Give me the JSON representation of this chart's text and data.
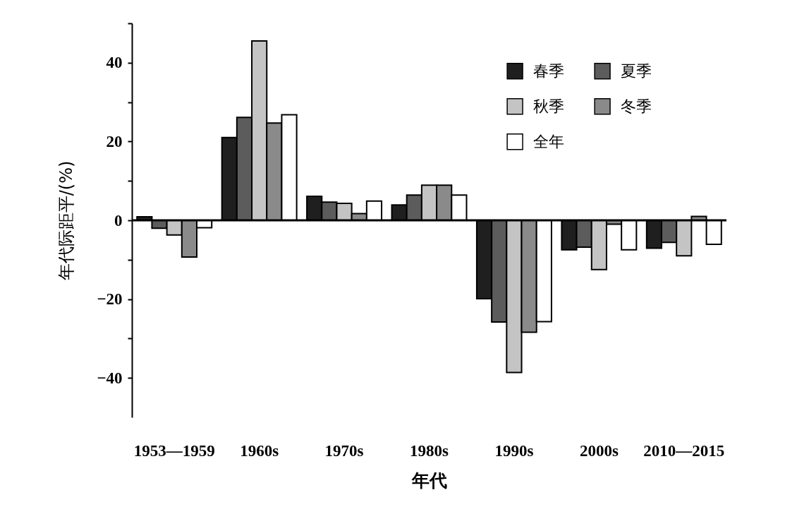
{
  "chart_data": {
    "type": "bar",
    "xlabel": "年代",
    "ylabel": "年代际距平/(%)",
    "categories": [
      "1953—1959",
      "1960s",
      "1970s",
      "1980s",
      "1990s",
      "2000s",
      "2010—2015"
    ],
    "series": [
      {
        "name": "春季",
        "color": "#1f1f1f",
        "values": [
          0.9,
          21.0,
          6.1,
          3.9,
          -19.9,
          -7.5,
          -7.1
        ]
      },
      {
        "name": "夏季",
        "color": "#5c5c5c",
        "values": [
          -2.0,
          26.1,
          4.6,
          6.4,
          -25.8,
          -6.8,
          -5.6
        ]
      },
      {
        "name": "秋季",
        "color": "#c4c4c4",
        "values": [
          -3.7,
          45.5,
          4.3,
          8.9,
          -38.6,
          -12.5,
          -9.0
        ]
      },
      {
        "name": "冬季",
        "color": "#8a8a8a",
        "values": [
          -9.3,
          24.7,
          1.7,
          8.9,
          -28.4,
          -1.0,
          1.0
        ]
      },
      {
        "name": "全年",
        "color": "#ffffff",
        "values": [
          -1.9,
          26.8,
          4.9,
          6.4,
          -25.7,
          -7.5,
          -6.1
        ]
      }
    ],
    "ylim": [
      -50,
      50
    ],
    "yticks": [
      -40,
      {
        "value": -30,
        "label": null
      },
      -20,
      {
        "value": -10,
        "label": null
      },
      0,
      {
        "value": 10,
        "label": null
      },
      20,
      {
        "value": 30,
        "label": null
      },
      40,
      {
        "value": 50,
        "label": null
      }
    ],
    "legend": "top right",
    "ref_lines": [
      {
        "axis": "y",
        "value": 0,
        "color": "#000000"
      }
    ]
  }
}
